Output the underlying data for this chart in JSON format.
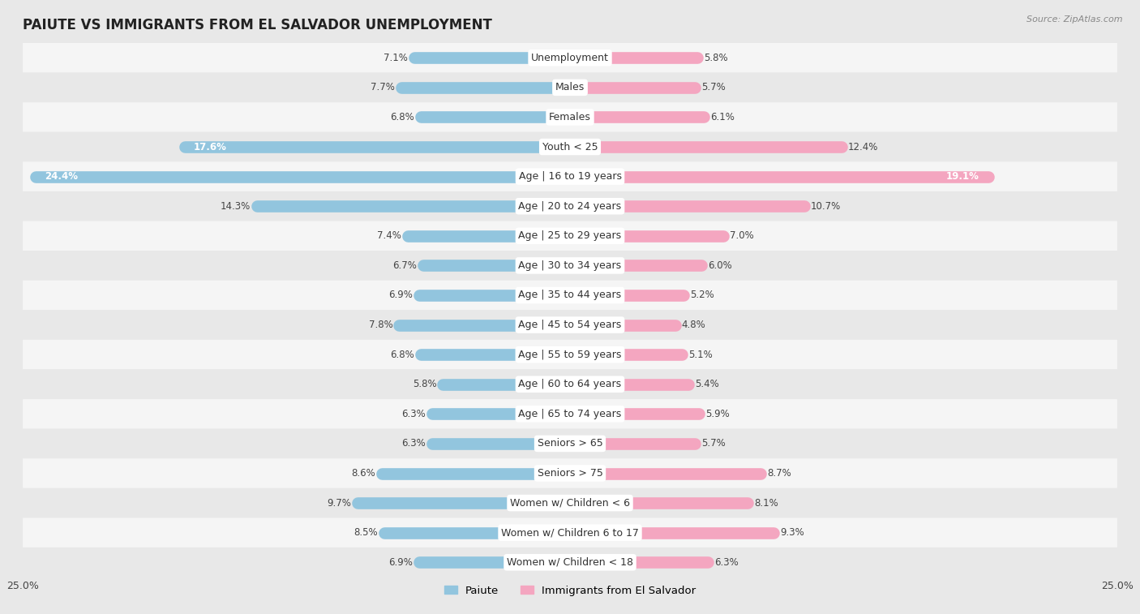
{
  "title": "PAIUTE VS IMMIGRANTS FROM EL SALVADOR UNEMPLOYMENT",
  "source": "Source: ZipAtlas.com",
  "categories": [
    "Unemployment",
    "Males",
    "Females",
    "Youth < 25",
    "Age | 16 to 19 years",
    "Age | 20 to 24 years",
    "Age | 25 to 29 years",
    "Age | 30 to 34 years",
    "Age | 35 to 44 years",
    "Age | 45 to 54 years",
    "Age | 55 to 59 years",
    "Age | 60 to 64 years",
    "Age | 65 to 74 years",
    "Seniors > 65",
    "Seniors > 75",
    "Women w/ Children < 6",
    "Women w/ Children 6 to 17",
    "Women w/ Children < 18"
  ],
  "paiute_values": [
    7.1,
    7.7,
    6.8,
    17.6,
    24.4,
    14.3,
    7.4,
    6.7,
    6.9,
    7.8,
    6.8,
    5.8,
    6.3,
    6.3,
    8.6,
    9.7,
    8.5,
    6.9
  ],
  "salvador_values": [
    5.8,
    5.7,
    6.1,
    12.4,
    19.1,
    10.7,
    7.0,
    6.0,
    5.2,
    4.8,
    5.1,
    5.4,
    5.9,
    5.7,
    8.7,
    8.1,
    9.3,
    6.3
  ],
  "paiute_color": "#92c5de",
  "salvador_color": "#f4a6c0",
  "row_color_light": "#f5f5f5",
  "row_color_dark": "#e8e8e8",
  "background_color": "#e8e8e8",
  "label_bg_color": "#ffffff",
  "axis_max": 25.0,
  "title_fontsize": 12,
  "label_fontsize": 9,
  "value_fontsize": 8.5,
  "legend_label_paiute": "Paiute",
  "legend_label_salvador": "Immigrants from El Salvador"
}
